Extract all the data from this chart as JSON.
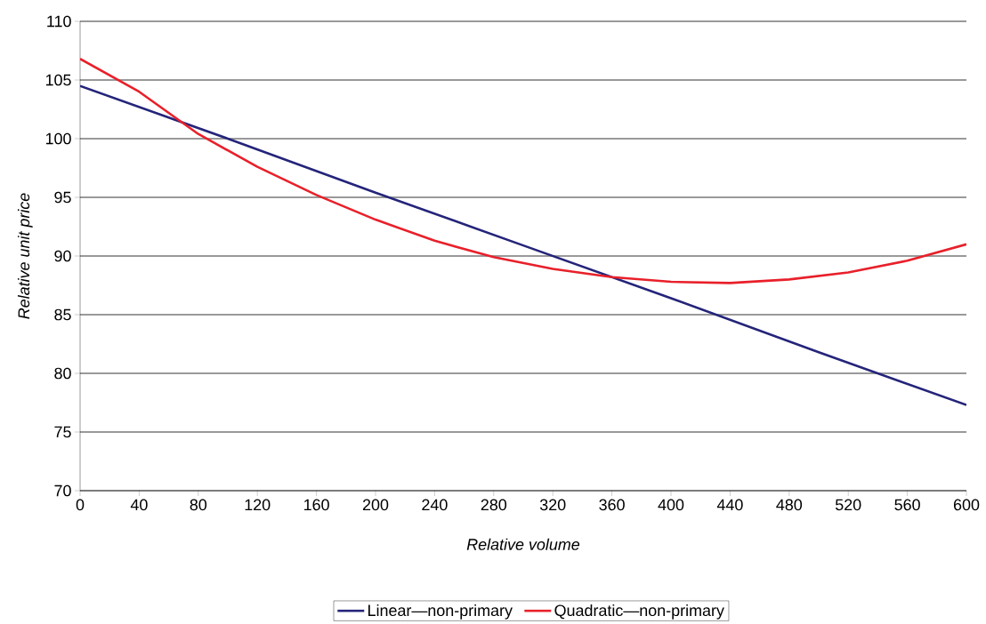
{
  "chart_data": {
    "type": "line",
    "xlabel": "Relative volume",
    "ylabel": "Relative unit price",
    "xlim": [
      0,
      600
    ],
    "ylim": [
      70,
      110
    ],
    "xticks": [
      0,
      40,
      80,
      120,
      160,
      200,
      240,
      280,
      320,
      360,
      400,
      440,
      480,
      520,
      560,
      600
    ],
    "yticks": [
      70,
      75,
      80,
      85,
      90,
      95,
      100,
      105,
      110
    ],
    "grid": "y",
    "legend": "bottom",
    "marker": "none",
    "line_style": "solid",
    "series": [
      {
        "name": "Linear—non-primary",
        "color": "#24247a",
        "x": [
          0,
          100,
          200,
          300,
          400,
          500,
          600
        ],
        "values": [
          104.5,
          100.0,
          95.4,
          90.9,
          86.4,
          81.8,
          77.3
        ]
      },
      {
        "name": "Quadratic—non-primary",
        "color": "#e8202a",
        "x": [
          0,
          40,
          80,
          120,
          160,
          200,
          240,
          280,
          320,
          360,
          400,
          440,
          480,
          520,
          560,
          600
        ],
        "values": [
          106.8,
          104.0,
          100.4,
          97.6,
          95.2,
          93.1,
          91.3,
          89.9,
          88.9,
          88.2,
          87.8,
          87.7,
          88.0,
          88.6,
          89.6,
          91.0
        ]
      }
    ]
  }
}
